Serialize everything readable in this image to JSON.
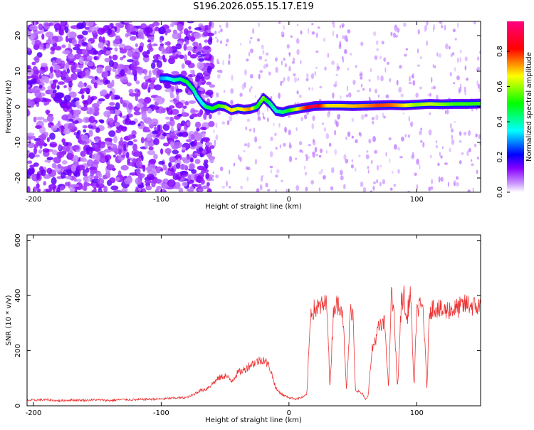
{
  "title": "S196.2026.055.15.17.E19",
  "chart_data": [
    {
      "type": "heatmap",
      "title": "",
      "xlabel": "Height of straight line (km)",
      "ylabel": "Frequency (Hz)",
      "xlim": [
        -205,
        150
      ],
      "ylim": [
        -24,
        24
      ],
      "xticks": [
        -200,
        -100,
        0,
        100
      ],
      "yticks": [
        -20,
        -10,
        0,
        10,
        20
      ],
      "colorbar": {
        "label": "Normalized spectral amplitude",
        "range": [
          0,
          0.97
        ],
        "ticks": [
          0.0,
          0.2,
          0.4,
          0.6,
          0.8
        ],
        "colors": [
          "#ffffff",
          "#9933ff",
          "#0000ff",
          "#00ffff",
          "#00ff00",
          "#ffff00",
          "#ff0000",
          "#ff0080"
        ]
      },
      "ridge": {
        "name": "dominant frequency",
        "x": [
          -100,
          -95,
          -90,
          -85,
          -80,
          -75,
          -72,
          -68,
          -65,
          -60,
          -55,
          -50,
          -45,
          -40,
          -35,
          -30,
          -25,
          -20,
          -15,
          -10,
          -5,
          0,
          10,
          20,
          30,
          40,
          50,
          60,
          70,
          80,
          90,
          100,
          110,
          120,
          130,
          140,
          150
        ],
        "y": [
          8,
          8,
          7.5,
          7.8,
          7,
          5,
          3,
          1,
          0,
          -0.5,
          0.3,
          0,
          -1,
          -0.5,
          -0.8,
          -0.6,
          0,
          2.5,
          1,
          -1.2,
          -1.5,
          -1,
          -0.4,
          0.2,
          0.3,
          0.3,
          0.2,
          0.3,
          0.4,
          0.5,
          0.4,
          0.6,
          0.8,
          0.7,
          0.8,
          0.8,
          0.9
        ],
        "amplitude": [
          0.3,
          0.35,
          0.4,
          0.45,
          0.5,
          0.45,
          0.4,
          0.35,
          0.45,
          0.5,
          0.55,
          0.6,
          0.7,
          0.65,
          0.7,
          0.75,
          0.5,
          0.6,
          0.45,
          0.4,
          0.45,
          0.5,
          0.75,
          0.95,
          0.7,
          0.7,
          0.72,
          0.75,
          0.8,
          0.78,
          0.7,
          0.6,
          0.65,
          0.6,
          0.55,
          0.55,
          0.55
        ]
      }
    },
    {
      "type": "line",
      "title": "",
      "xlabel": "Height of straight line (km)",
      "ylabel": "SNR (10 * v/v)",
      "xlim": [
        -205,
        150
      ],
      "ylim": [
        0,
        620
      ],
      "xticks": [
        -200,
        -100,
        0,
        100
      ],
      "yticks": [
        0,
        200,
        400,
        600
      ],
      "color": "#ee3333",
      "x": [
        -205,
        -190,
        -180,
        -170,
        -160,
        -150,
        -140,
        -130,
        -120,
        -110,
        -100,
        -90,
        -80,
        -75,
        -70,
        -65,
        -60,
        -55,
        -50,
        -45,
        -40,
        -35,
        -30,
        -25,
        -20,
        -15,
        -10,
        -5,
        0,
        5,
        10,
        14,
        17,
        20,
        25,
        30,
        32,
        35,
        40,
        42,
        45,
        48,
        50,
        52,
        55,
        58,
        60,
        62,
        65,
        70,
        75,
        78,
        80,
        82,
        85,
        88,
        90,
        92,
        95,
        98,
        100,
        105,
        108,
        110,
        115,
        120,
        125,
        130,
        135,
        140,
        145,
        150
      ],
      "y": [
        20,
        22,
        18,
        21,
        20,
        22,
        19,
        23,
        22,
        24,
        25,
        28,
        30,
        40,
        55,
        60,
        80,
        100,
        110,
        90,
        120,
        130,
        150,
        160,
        170,
        140,
        60,
        40,
        30,
        25,
        30,
        40,
        340,
        350,
        360,
        370,
        60,
        360,
        370,
        350,
        50,
        340,
        350,
        60,
        50,
        40,
        20,
        40,
        200,
        280,
        300,
        60,
        400,
        350,
        60,
        380,
        400,
        300,
        420,
        60,
        350,
        360,
        60,
        350,
        360,
        340,
        350,
        350,
        360,
        370,
        360,
        360
      ]
    }
  ]
}
